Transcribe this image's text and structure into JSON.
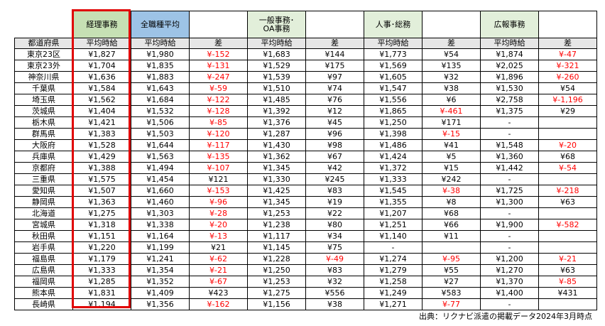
{
  "groups": {
    "keiri": "経理事務",
    "all": "全職種平均",
    "ippan": "一般事務･OA事務",
    "jinji": "人事･総務",
    "kouhou": "広報事務"
  },
  "sub": {
    "pref": "都道府県",
    "avg": "平均時給",
    "diff": "差"
  },
  "rows": [
    [
      "東京23区",
      "¥1,827",
      "¥1,980",
      "¥-152",
      "¥1,683",
      "¥144",
      "¥1,773",
      "¥54",
      "¥1,874",
      "¥-47"
    ],
    [
      "東京23外",
      "¥1,704",
      "¥1,835",
      "¥-131",
      "¥1,529",
      "¥175",
      "¥1,569",
      "¥135",
      "¥2,025",
      "¥-321"
    ],
    [
      "神奈川県",
      "¥1,636",
      "¥1,883",
      "¥-247",
      "¥1,539",
      "¥97",
      "¥1,605",
      "¥32",
      "¥1,896",
      "¥-260"
    ],
    [
      "千葉県",
      "¥1,584",
      "¥1,643",
      "¥-59",
      "¥1,510",
      "¥74",
      "¥1,547",
      "¥38",
      "¥1,530",
      "¥54"
    ],
    [
      "埼玉県",
      "¥1,562",
      "¥1,684",
      "¥-122",
      "¥1,485",
      "¥76",
      "¥1,556",
      "¥6",
      "¥2,758",
      "¥-1,196"
    ],
    [
      "茨城県",
      "¥1,404",
      "¥1,532",
      "¥-128",
      "¥1,392",
      "¥12",
      "¥1,865",
      "¥-461",
      "¥1,375",
      "¥29"
    ],
    [
      "栃木県",
      "¥1,421",
      "¥1,506",
      "¥-85",
      "¥1,376",
      "¥45",
      "¥1,250",
      "¥171",
      "-",
      ""
    ],
    [
      "群馬県",
      "¥1,383",
      "¥1,503",
      "¥-120",
      "¥1,287",
      "¥96",
      "¥1,398",
      "¥-15",
      "-",
      ""
    ],
    [
      "大阪府",
      "¥1,528",
      "¥1,644",
      "¥-117",
      "¥1,430",
      "¥98",
      "¥1,486",
      "¥41",
      "¥1,548",
      "¥-20"
    ],
    [
      "兵庫県",
      "¥1,429",
      "¥1,563",
      "¥-135",
      "¥1,362",
      "¥67",
      "¥1,424",
      "¥5",
      "¥1,360",
      "¥68"
    ],
    [
      "京都府",
      "¥1,388",
      "¥1,494",
      "¥-107",
      "¥1,345",
      "¥42",
      "¥1,372",
      "¥15",
      "¥1,442",
      "¥-54"
    ],
    [
      "三重県",
      "¥1,575",
      "¥1,454",
      "¥121",
      "¥1,330",
      "¥245",
      "¥1,333",
      "¥242",
      "-",
      ""
    ],
    [
      "愛知県",
      "¥1,507",
      "¥1,660",
      "¥-153",
      "¥1,425",
      "¥83",
      "¥1,545",
      "¥-38",
      "¥1,725",
      "¥-218"
    ],
    [
      "静岡県",
      "¥1,363",
      "¥1,460",
      "¥-96",
      "¥1,345",
      "¥19",
      "¥1,355",
      "¥8",
      "¥1,300",
      "¥63"
    ],
    [
      "北海道",
      "¥1,275",
      "¥1,303",
      "¥-28",
      "¥1,253",
      "¥22",
      "¥1,207",
      "¥68",
      "-",
      ""
    ],
    [
      "宮城県",
      "¥1,318",
      "¥1,338",
      "¥-20",
      "¥1,238",
      "¥80",
      "¥1,251",
      "¥66",
      "¥1,900",
      "¥-582"
    ],
    [
      "秋田県",
      "¥1,151",
      "¥1,164",
      "¥-13",
      "¥1,117",
      "¥34",
      "¥1,140",
      "¥11",
      "-",
      ""
    ],
    [
      "岩手県",
      "¥1,220",
      "¥1,199",
      "¥21",
      "¥1,145",
      "¥75",
      "-",
      "",
      "-",
      ""
    ],
    [
      "福島県",
      "¥1,179",
      "¥1,241",
      "¥-62",
      "¥1,228",
      "¥-49",
      "¥1,274",
      "¥-95",
      "¥1,200",
      "¥-21"
    ],
    [
      "広島県",
      "¥1,333",
      "¥1,354",
      "¥-21",
      "¥1,250",
      "¥83",
      "¥1,279",
      "¥55",
      "¥1,270",
      "¥63"
    ],
    [
      "福岡県",
      "¥1,285",
      "¥1,352",
      "¥-67",
      "¥1,253",
      "¥32",
      "¥1,258",
      "¥27",
      "¥1,370",
      "¥-85"
    ],
    [
      "熊本県",
      "¥1,831",
      "¥1,409",
      "¥423",
      "¥1,275",
      "¥556",
      "¥1,249",
      "¥583",
      "¥1,400",
      "¥431"
    ],
    [
      "長崎県",
      "¥1,194",
      "¥1,356",
      "¥-162",
      "¥1,156",
      "¥38",
      "¥1,271",
      "¥-77",
      "-",
      ""
    ]
  ],
  "source_note": "出典：リクナビ派遣の掲載データ2024年3月時点",
  "colors": {
    "highlight_frame": "#e00000",
    "negative_text": "#ff0000",
    "header_keiri": "#c6e0b4",
    "header_all": "#9dc3e6",
    "header_other": "#e2efda",
    "subheader": "#e6e6e6"
  }
}
